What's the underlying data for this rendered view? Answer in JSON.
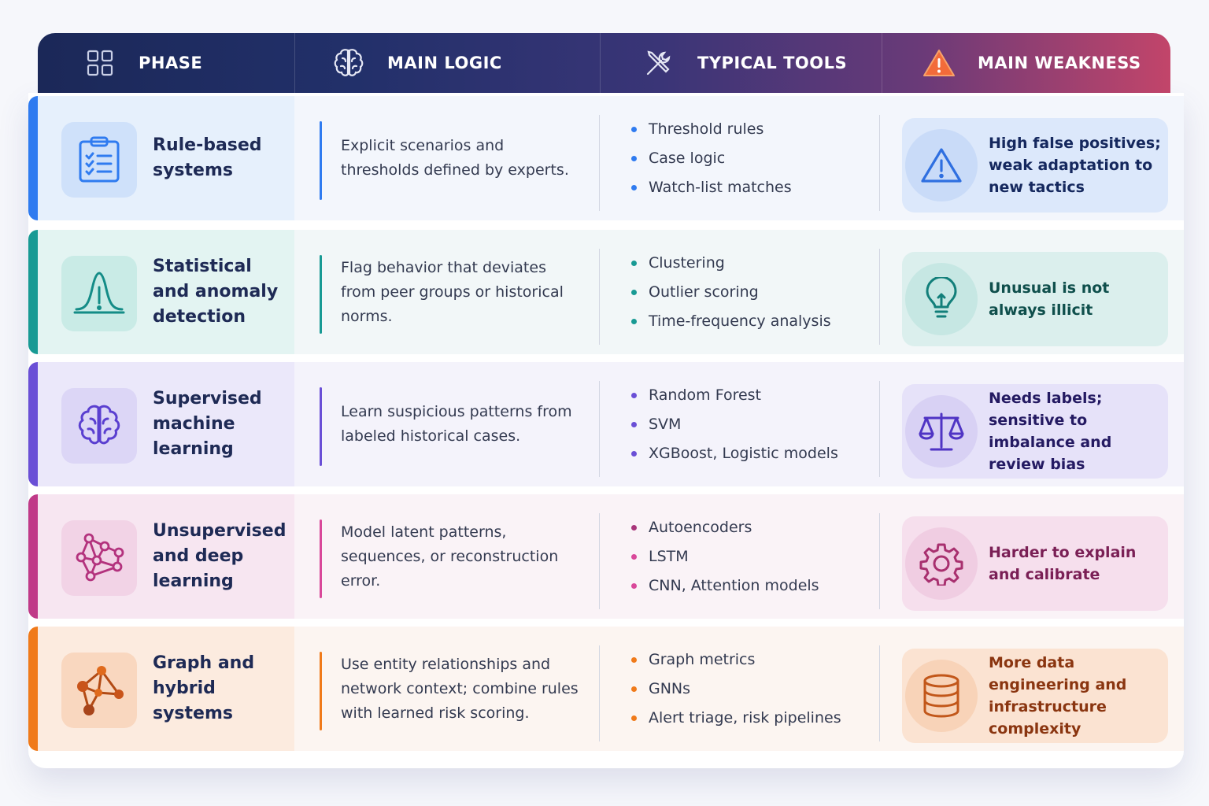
{
  "header": {
    "phase": "PHASE",
    "main_logic": "MAIN LOGIC",
    "typical_tools": "TYPICAL TOOLS",
    "main_weakness": "MAIN WEAKNESS"
  },
  "colors": {
    "rule": "#2f7bf0",
    "statistical": "#189a94",
    "supervised": "#6a4fd6",
    "unsupervised": "#c03a88",
    "graph": "#f07a1a"
  },
  "rows": [
    {
      "phase": "Rule-based systems",
      "icon": "clipboard-checklist-icon",
      "logic": "Explicit scenarios and thresholds defined by experts.",
      "tools": [
        "Threshold rules",
        "Case logic",
        "Watch-list matches"
      ],
      "weakness_icon": "warning-triangle-icon",
      "weakness": "High false positives; weak adaptation to new tactics"
    },
    {
      "phase": "Statistical and anomaly detection",
      "icon": "bell-curve-icon",
      "logic": "Flag behavior that deviates from peer groups or historical norms.",
      "tools": [
        "Clustering",
        "Outlier scoring",
        "Time-frequency analysis"
      ],
      "weakness_icon": "lightbulb-icon",
      "weakness": "Unusual is not always illicit"
    },
    {
      "phase": "Supervised machine learning",
      "icon": "brain-icon",
      "logic": "Learn suspicious patterns from labeled historical cases.",
      "tools": [
        "Random Forest",
        "SVM",
        "XGBoost, Logistic models"
      ],
      "weakness_icon": "scales-icon",
      "weakness": "Needs labels; sensitive to imbalance and review bias"
    },
    {
      "phase": "Unsupervised and deep learning",
      "icon": "neural-network-icon",
      "logic": "Model latent patterns, sequences, or reconstruction error.",
      "tools": [
        "Autoencoders",
        "LSTM",
        "CNN, Attention models"
      ],
      "weakness_icon": "gear-icon",
      "weakness": "Harder to explain and calibrate"
    },
    {
      "phase": "Graph and hybrid systems",
      "icon": "graph-network-icon",
      "logic": "Use entity relationships and network context; combine rules with learned risk scoring.",
      "tools": [
        "Graph metrics",
        "GNNs",
        "Alert triage, risk pipelines"
      ],
      "weakness_icon": "database-icon",
      "weakness": "More data engineering and infrastructure complexity"
    }
  ]
}
